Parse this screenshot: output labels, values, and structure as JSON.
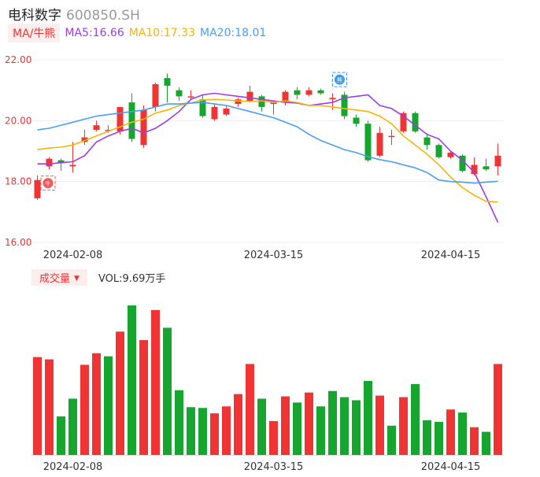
{
  "header": {
    "name": "电科数字",
    "code": "600850.SH"
  },
  "legend": {
    "mode_label": "MA/牛熊",
    "ma5": "MA5:16.66",
    "ma10": "MA10:17.33",
    "ma20": "MA20:18.01"
  },
  "colors": {
    "up": "#f03434",
    "down": "#16a52e",
    "ma5": "#9b3ee8",
    "ma10": "#f2b50a",
    "ma20": "#4a9ef0",
    "grid": "#eeeeee"
  },
  "volume_panel": {
    "tab_label": "成交量",
    "tab_icon": "caret-down-icon",
    "vol_text": "VOL:9.69万手"
  },
  "markers": [
    {
      "icon": "bull-badge-icon",
      "text": "牛",
      "x": "2024-01-31",
      "y": 17.95
    },
    {
      "icon": "bear-badge-icon",
      "text": "熊",
      "x": "2024-03-29",
      "y": 21.35
    }
  ],
  "chart_data": [
    {
      "type": "candlestick",
      "y_ticks": [
        "22.00",
        "20.00",
        "18.00",
        "16.00"
      ],
      "ylim": [
        16.0,
        22.0
      ],
      "x_ticks": [
        {
          "label": "2024-02-08",
          "index": 3
        },
        {
          "label": "2024-03-15",
          "index": 20
        },
        {
          "label": "2024-04-15",
          "index": 35
        }
      ],
      "candles": [
        {
          "o": 17.45,
          "c": 18.05,
          "h": 18.2,
          "l": 17.4
        },
        {
          "o": 18.5,
          "c": 18.75,
          "h": 18.8,
          "l": 18.4
        },
        {
          "o": 18.7,
          "c": 18.6,
          "h": 18.75,
          "l": 18.35
        },
        {
          "o": 18.5,
          "c": 18.55,
          "h": 19.3,
          "l": 18.3
        },
        {
          "o": 19.3,
          "c": 19.45,
          "h": 19.7,
          "l": 19.2
        },
        {
          "o": 19.7,
          "c": 19.85,
          "h": 20.0,
          "l": 19.65
        },
        {
          "o": 19.7,
          "c": 19.7,
          "h": 19.85,
          "l": 19.6
        },
        {
          "o": 19.65,
          "c": 20.45,
          "h": 20.45,
          "l": 19.55
        },
        {
          "o": 20.6,
          "c": 19.4,
          "h": 20.9,
          "l": 19.3
        },
        {
          "o": 19.2,
          "c": 20.35,
          "h": 20.5,
          "l": 19.1
        },
        {
          "o": 20.45,
          "c": 21.2,
          "h": 21.25,
          "l": 20.3
        },
        {
          "o": 21.4,
          "c": 21.15,
          "h": 21.55,
          "l": 20.6
        },
        {
          "o": 21.0,
          "c": 20.8,
          "h": 21.1,
          "l": 20.65
        },
        {
          "o": 20.8,
          "c": 20.8,
          "h": 21.0,
          "l": 20.7
        },
        {
          "o": 20.7,
          "c": 20.15,
          "h": 20.85,
          "l": 20.1
        },
        {
          "o": 20.05,
          "c": 20.45,
          "h": 20.55,
          "l": 20.0
        },
        {
          "o": 20.2,
          "c": 20.4,
          "h": 20.5,
          "l": 20.15
        },
        {
          "o": 20.55,
          "c": 20.7,
          "h": 20.75,
          "l": 20.45
        },
        {
          "o": 20.65,
          "c": 20.95,
          "h": 21.15,
          "l": 20.6
        },
        {
          "o": 20.8,
          "c": 20.45,
          "h": 20.85,
          "l": 20.3
        },
        {
          "o": 20.55,
          "c": 20.6,
          "h": 20.65,
          "l": 20.2
        },
        {
          "o": 20.6,
          "c": 20.95,
          "h": 21.0,
          "l": 20.5
        },
        {
          "o": 21.0,
          "c": 20.85,
          "h": 21.1,
          "l": 20.7
        },
        {
          "o": 20.85,
          "c": 21.0,
          "h": 21.1,
          "l": 20.8
        },
        {
          "o": 21.0,
          "c": 20.9,
          "h": 21.05,
          "l": 20.85
        },
        {
          "o": 20.7,
          "c": 20.75,
          "h": 20.9,
          "l": 20.35
        },
        {
          "o": 20.85,
          "c": 20.15,
          "h": 20.95,
          "l": 20.05
        },
        {
          "o": 20.1,
          "c": 19.9,
          "h": 20.2,
          "l": 19.8
        },
        {
          "o": 19.9,
          "c": 18.7,
          "h": 20.0,
          "l": 18.65
        },
        {
          "o": 18.85,
          "c": 19.6,
          "h": 19.8,
          "l": 18.8
        },
        {
          "o": 19.5,
          "c": 19.5,
          "h": 19.7,
          "l": 19.2
        },
        {
          "o": 19.65,
          "c": 20.25,
          "h": 20.3,
          "l": 19.6
        },
        {
          "o": 20.25,
          "c": 19.65,
          "h": 20.3,
          "l": 19.6
        },
        {
          "o": 19.45,
          "c": 19.2,
          "h": 19.55,
          "l": 19.05
        },
        {
          "o": 19.2,
          "c": 18.8,
          "h": 19.25,
          "l": 18.75
        },
        {
          "o": 18.8,
          "c": 18.95,
          "h": 19.0,
          "l": 18.75
        },
        {
          "o": 18.85,
          "c": 18.35,
          "h": 18.9,
          "l": 18.3
        },
        {
          "o": 18.25,
          "c": 18.55,
          "h": 18.8,
          "l": 18.2
        },
        {
          "o": 18.5,
          "c": 18.4,
          "h": 18.75,
          "l": 18.35
        },
        {
          "o": 18.5,
          "c": 18.85,
          "h": 19.25,
          "l": 18.2
        }
      ],
      "series": [
        {
          "name": "MA5",
          "values": [
            18.58,
            18.58,
            18.62,
            18.65,
            18.85,
            19.3,
            19.5,
            19.65,
            19.75,
            19.6,
            19.75,
            20.0,
            20.3,
            20.7,
            20.85,
            20.9,
            20.85,
            20.8,
            20.75,
            20.7,
            20.65,
            20.6,
            20.58,
            20.5,
            20.55,
            20.6,
            20.75,
            20.8,
            20.85,
            20.5,
            20.4,
            20.15,
            19.85,
            19.55,
            19.4,
            19.0,
            18.7,
            18.3,
            17.5,
            16.66
          ]
        },
        {
          "name": "MA10",
          "values": [
            19.05,
            19.1,
            19.13,
            19.2,
            19.35,
            19.5,
            19.65,
            19.8,
            19.95,
            20.05,
            20.25,
            20.35,
            20.5,
            20.58,
            20.68,
            20.7,
            20.68,
            20.65,
            20.63,
            20.65,
            20.6,
            20.65,
            20.6,
            20.5,
            20.5,
            20.45,
            20.4,
            20.35,
            20.3,
            20.15,
            19.9,
            19.5,
            19.2,
            18.9,
            18.55,
            18.15,
            17.8,
            17.55,
            17.35,
            17.33
          ]
        },
        {
          "name": "MA20",
          "values": [
            19.7,
            19.75,
            19.85,
            19.95,
            20.05,
            20.15,
            20.2,
            20.25,
            20.3,
            20.35,
            20.45,
            20.55,
            20.55,
            20.58,
            20.6,
            20.55,
            20.5,
            20.4,
            20.3,
            20.2,
            20.1,
            19.95,
            19.8,
            19.55,
            19.35,
            19.2,
            19.05,
            18.95,
            18.82,
            18.72,
            18.65,
            18.55,
            18.45,
            18.3,
            18.05,
            18.0,
            17.98,
            17.95,
            17.98,
            18.01
          ]
        }
      ]
    },
    {
      "type": "bar",
      "name": "volume",
      "values": [
        6.35,
        6.2,
        2.5,
        3.65,
        5.85,
        6.6,
        6.4,
        8.0,
        9.7,
        7.45,
        9.4,
        8.25,
        4.2,
        3.1,
        3.05,
        2.7,
        3.15,
        3.95,
        5.9,
        3.65,
        2.2,
        3.8,
        3.4,
        4.05,
        3.15,
        4.15,
        3.75,
        3.55,
        4.8,
        3.85,
        1.9,
        3.75,
        4.6,
        2.25,
        2.15,
        2.95,
        2.75,
        1.8,
        1.5,
        5.9
      ],
      "up": [
        true,
        true,
        false,
        false,
        true,
        true,
        false,
        true,
        false,
        true,
        true,
        false,
        false,
        false,
        false,
        true,
        true,
        true,
        true,
        false,
        true,
        true,
        false,
        true,
        false,
        false,
        false,
        false,
        false,
        true,
        false,
        true,
        false,
        false,
        false,
        true,
        false,
        true,
        false,
        true
      ]
    }
  ]
}
